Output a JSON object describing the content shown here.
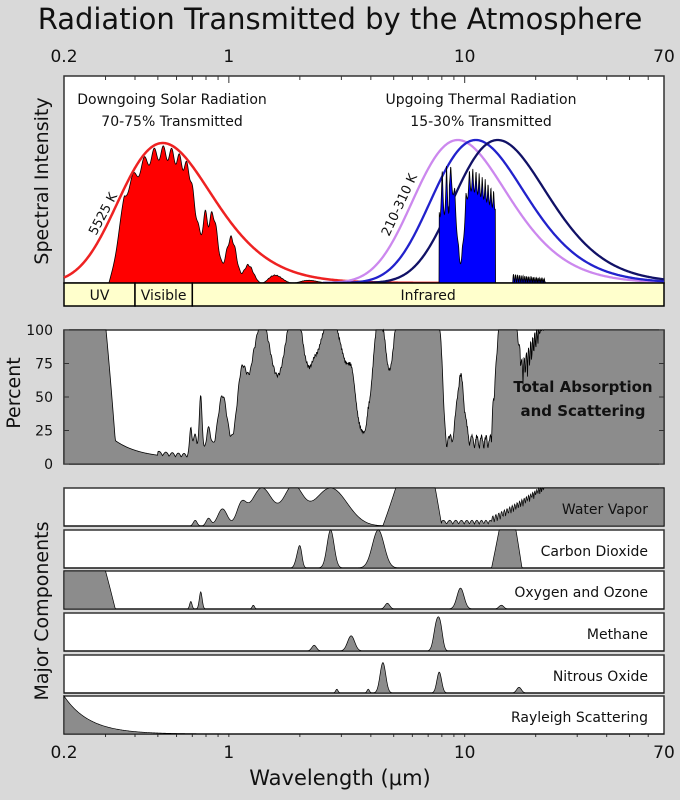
{
  "title": "Radiation Transmitted by the Atmosphere",
  "xlabel": "Wavelength (μm)",
  "x_ticks": [
    "0.2",
    "1",
    "10",
    "70"
  ],
  "colors": {
    "background": "#d9d9d9",
    "solar_fill": "#ff0000",
    "solar_curve": "#ee2222",
    "thermal_fill": "#0000ff",
    "thermal_curve_light": "#cc88ee",
    "thermal_curve_mid": "#2222cc",
    "thermal_curve_dark": "#111166",
    "band_fill": "#ffffcc",
    "absorption_fill": "#8c8c8c"
  },
  "chart_data": [
    {
      "type": "area",
      "panel": "spectral",
      "ylabel": "Spectral Intensity",
      "x_scale": "log",
      "xlim": [
        0.2,
        70
      ],
      "solar": {
        "title": "Downgoing Solar Radiation",
        "subtitle": "70-75% Transmitted",
        "curve_label": "5525 K",
        "temperature_K": 5525
      },
      "thermal": {
        "title": "Upgoing Thermal Radiation",
        "subtitle": "15-30% Transmitted",
        "curve_label": "210-310 K",
        "temperatures_K": [
          310,
          260,
          210
        ]
      },
      "bands": [
        {
          "label": "UV",
          "range": [
            0.2,
            0.4
          ]
        },
        {
          "label": "Visible",
          "range": [
            0.4,
            0.7
          ]
        },
        {
          "label": "Infrared",
          "range": [
            0.7,
            70
          ]
        }
      ]
    },
    {
      "type": "area",
      "panel": "total",
      "ylabel": "Percent",
      "series_label": "Total Absorption and Scattering",
      "x_scale": "log",
      "xlim": [
        0.2,
        70
      ],
      "ylim": [
        0,
        100
      ],
      "yticks": [
        0,
        25,
        50,
        75,
        100
      ]
    },
    {
      "type": "area",
      "panel": "components",
      "ylabel": "Major Components",
      "x_scale": "log",
      "xlim": [
        0.2,
        70
      ],
      "components": [
        {
          "name": "Water Vapor"
        },
        {
          "name": "Carbon Dioxide"
        },
        {
          "name": "Oxygen and Ozone"
        },
        {
          "name": "Methane"
        },
        {
          "name": "Nitrous Oxide"
        },
        {
          "name": "Rayleigh Scattering"
        }
      ]
    }
  ]
}
